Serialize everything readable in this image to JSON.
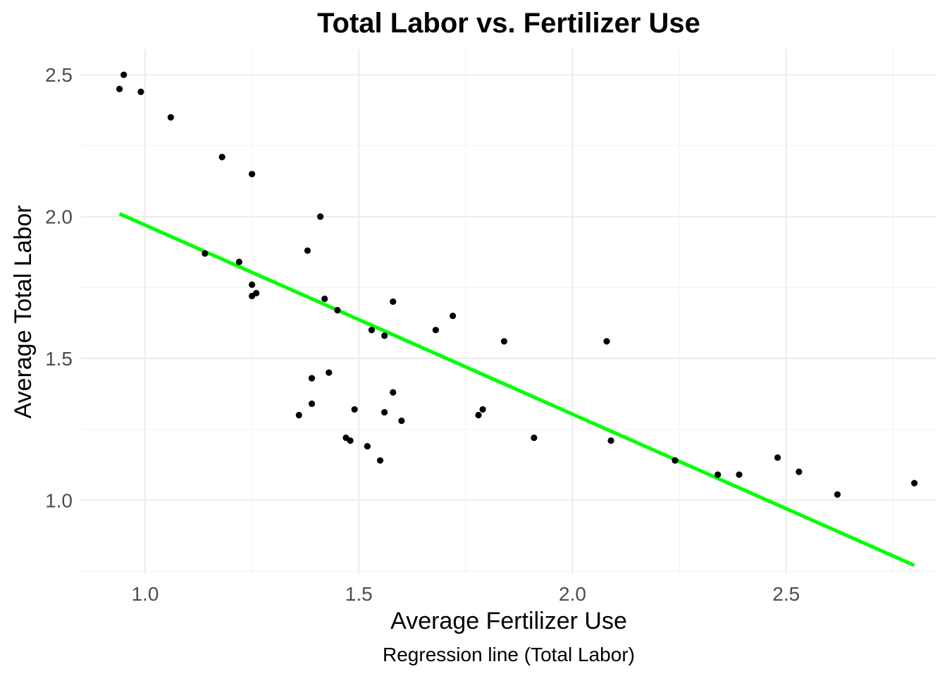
{
  "chart_data": {
    "type": "scatter",
    "title": "Total Labor vs. Fertilizer Use",
    "xlabel": "Average Fertilizer Use",
    "ylabel": "Average Total Labor",
    "caption": "Regression line (Total Labor)",
    "xlim": [
      0.85,
      2.85
    ],
    "ylim": [
      0.74,
      2.59
    ],
    "x_ticks": [
      1.0,
      1.5,
      2.0,
      2.5
    ],
    "x_tick_labels": [
      "1.0",
      "1.5",
      "2.0",
      "2.5"
    ],
    "y_ticks": [
      1.0,
      1.5,
      2.0,
      2.5
    ],
    "y_tick_labels": [
      "1.0",
      "1.5",
      "2.0",
      "2.5"
    ],
    "grid": true,
    "legend": "none",
    "point_color": "#000000",
    "line_color": "#00ff00",
    "points": [
      {
        "x": 0.94,
        "y": 2.45
      },
      {
        "x": 0.95,
        "y": 2.5
      },
      {
        "x": 0.99,
        "y": 2.44
      },
      {
        "x": 1.06,
        "y": 2.35
      },
      {
        "x": 1.18,
        "y": 2.21
      },
      {
        "x": 1.25,
        "y": 2.15
      },
      {
        "x": 1.14,
        "y": 1.87
      },
      {
        "x": 1.22,
        "y": 1.84
      },
      {
        "x": 1.25,
        "y": 1.76
      },
      {
        "x": 1.25,
        "y": 1.72
      },
      {
        "x": 1.26,
        "y": 1.73
      },
      {
        "x": 1.41,
        "y": 2.0
      },
      {
        "x": 1.38,
        "y": 1.88
      },
      {
        "x": 1.42,
        "y": 1.71
      },
      {
        "x": 1.45,
        "y": 1.67
      },
      {
        "x": 1.53,
        "y": 1.6
      },
      {
        "x": 1.56,
        "y": 1.58
      },
      {
        "x": 1.58,
        "y": 1.7
      },
      {
        "x": 1.68,
        "y": 1.6
      },
      {
        "x": 1.72,
        "y": 1.65
      },
      {
        "x": 1.84,
        "y": 1.56
      },
      {
        "x": 2.08,
        "y": 1.56
      },
      {
        "x": 1.39,
        "y": 1.43
      },
      {
        "x": 1.43,
        "y": 1.45
      },
      {
        "x": 1.39,
        "y": 1.34
      },
      {
        "x": 1.36,
        "y": 1.3
      },
      {
        "x": 1.49,
        "y": 1.32
      },
      {
        "x": 1.56,
        "y": 1.31
      },
      {
        "x": 1.58,
        "y": 1.38
      },
      {
        "x": 1.6,
        "y": 1.28
      },
      {
        "x": 1.47,
        "y": 1.22
      },
      {
        "x": 1.48,
        "y": 1.21
      },
      {
        "x": 1.52,
        "y": 1.19
      },
      {
        "x": 1.55,
        "y": 1.14
      },
      {
        "x": 1.78,
        "y": 1.3
      },
      {
        "x": 1.79,
        "y": 1.32
      },
      {
        "x": 1.91,
        "y": 1.22
      },
      {
        "x": 2.09,
        "y": 1.21
      },
      {
        "x": 2.24,
        "y": 1.14
      },
      {
        "x": 2.34,
        "y": 1.09
      },
      {
        "x": 2.39,
        "y": 1.09
      },
      {
        "x": 2.48,
        "y": 1.15
      },
      {
        "x": 2.53,
        "y": 1.1
      },
      {
        "x": 2.62,
        "y": 1.02
      },
      {
        "x": 2.8,
        "y": 1.06
      }
    ],
    "regression_line": {
      "x": [
        0.94,
        2.8
      ],
      "y": [
        2.01,
        0.77
      ]
    }
  }
}
